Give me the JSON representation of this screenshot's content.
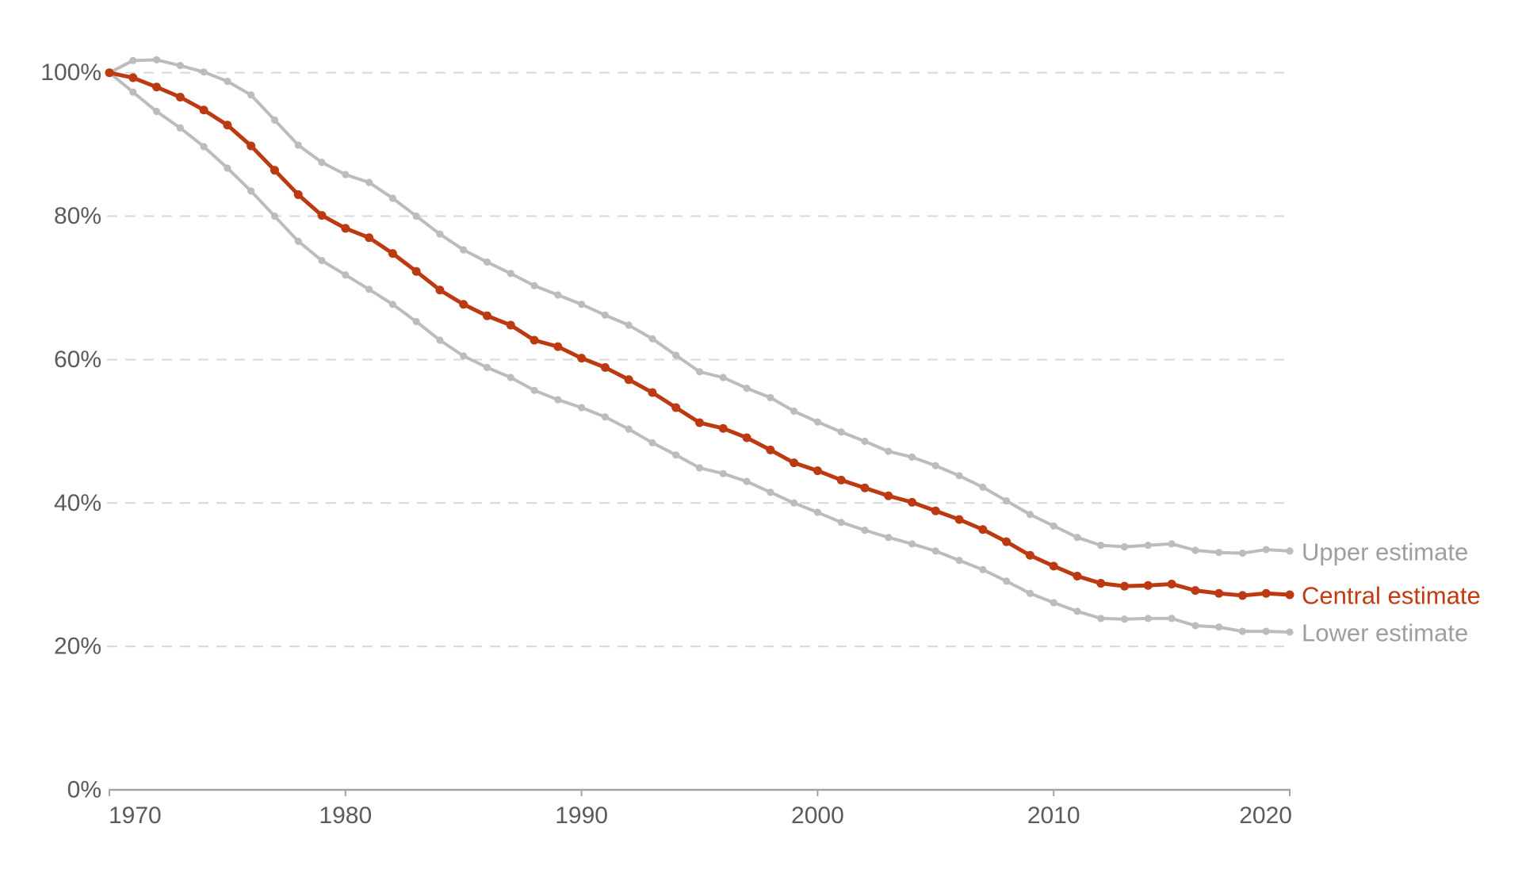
{
  "chart_data": {
    "type": "line",
    "title": "",
    "x": [
      1970,
      1971,
      1972,
      1973,
      1974,
      1975,
      1976,
      1977,
      1978,
      1979,
      1980,
      1981,
      1982,
      1983,
      1984,
      1985,
      1986,
      1987,
      1988,
      1989,
      1990,
      1991,
      1992,
      1993,
      1994,
      1995,
      1996,
      1997,
      1998,
      1999,
      2000,
      2001,
      2002,
      2003,
      2004,
      2005,
      2006,
      2007,
      2008,
      2009,
      2010,
      2011,
      2012,
      2013,
      2014,
      2015,
      2016,
      2017,
      2018,
      2019,
      2020
    ],
    "series": [
      {
        "name": "Upper estimate",
        "color": "#bcbcbc",
        "label_color": "#9e9e9e",
        "marker": "circle",
        "values": [
          100,
          101.7,
          101.8,
          101.0,
          100.1,
          98.8,
          96.9,
          93.4,
          89.9,
          87.5,
          85.8,
          84.7,
          82.5,
          80.0,
          77.5,
          75.3,
          73.6,
          72.0,
          70.3,
          69.0,
          67.7,
          66.2,
          64.8,
          62.9,
          60.6,
          58.3,
          57.5,
          56.0,
          54.7,
          52.8,
          51.3,
          49.9,
          48.6,
          47.2,
          46.4,
          45.2,
          43.8,
          42.2,
          40.3,
          38.4,
          36.8,
          35.2,
          34.1,
          33.9,
          34.1,
          34.3,
          33.4,
          33.1,
          33.0,
          33.5,
          33.3
        ]
      },
      {
        "name": "Central estimate",
        "color": "#bc3a12",
        "label_color": "#c03a12",
        "marker": "circle",
        "values": [
          100,
          99.3,
          98.0,
          96.6,
          94.8,
          92.7,
          89.8,
          86.4,
          83.0,
          80.1,
          78.3,
          77.0,
          74.8,
          72.3,
          69.7,
          67.7,
          66.1,
          64.8,
          62.7,
          61.8,
          60.2,
          58.9,
          57.2,
          55.4,
          53.3,
          51.2,
          50.4,
          49.1,
          47.4,
          45.6,
          44.5,
          43.2,
          42.1,
          41.0,
          40.1,
          38.9,
          37.7,
          36.3,
          34.6,
          32.7,
          31.2,
          29.8,
          28.8,
          28.4,
          28.5,
          28.7,
          27.8,
          27.4,
          27.1,
          27.4,
          27.2
        ]
      },
      {
        "name": "Lower estimate",
        "color": "#bcbcbc",
        "label_color": "#9e9e9e",
        "marker": "circle",
        "values": [
          100,
          97.3,
          94.6,
          92.3,
          89.7,
          86.7,
          83.5,
          80.0,
          76.5,
          73.8,
          71.8,
          69.8,
          67.7,
          65.3,
          62.7,
          60.5,
          58.9,
          57.5,
          55.7,
          54.4,
          53.3,
          52.0,
          50.3,
          48.4,
          46.7,
          44.9,
          44.1,
          43.0,
          41.5,
          40.0,
          38.7,
          37.3,
          36.2,
          35.2,
          34.3,
          33.3,
          32.0,
          30.7,
          29.1,
          27.4,
          26.1,
          24.9,
          23.9,
          23.8,
          23.9,
          23.9,
          22.9,
          22.7,
          22.1,
          22.1,
          22.0
        ]
      }
    ],
    "xlabel": "",
    "ylabel": "",
    "xlim": [
      1970,
      2020
    ],
    "ylim": [
      0,
      105
    ],
    "xticks": [
      1970,
      1980,
      1990,
      2000,
      2010,
      2020
    ],
    "xtick_labels": [
      "1970",
      "1980",
      "1990",
      "2000",
      "2010",
      "2020"
    ],
    "yticks": [
      0,
      20,
      40,
      60,
      80,
      100
    ],
    "ytick_labels": [
      "0%",
      "20%",
      "40%",
      "60%",
      "80%",
      "100%"
    ],
    "grid": "horizontal-dashed",
    "legend_position": "line-end-labels-right"
  }
}
